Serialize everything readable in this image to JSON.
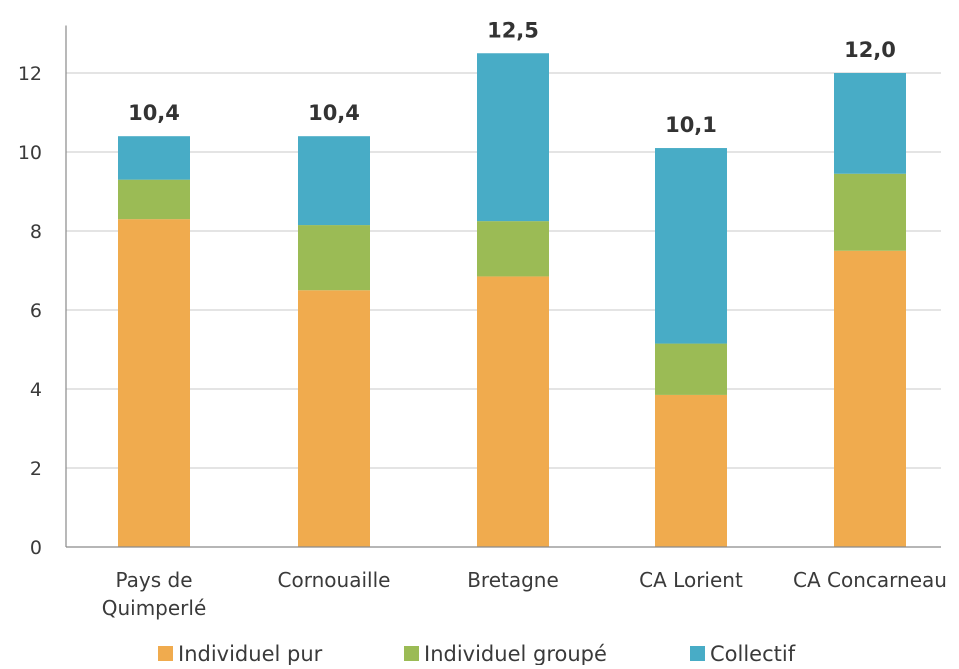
{
  "chart_data": {
    "type": "bar",
    "stacked": true,
    "categories": [
      [
        "Pays de",
        "Quimperlé"
      ],
      [
        "Cornouaille"
      ],
      [
        "Bretagne"
      ],
      [
        "CA Lorient"
      ],
      [
        "CA Concarneau"
      ]
    ],
    "series": [
      {
        "name": "Individuel pur",
        "color": "#f0ab4e",
        "values": [
          8.3,
          6.5,
          6.85,
          3.85,
          7.5
        ]
      },
      {
        "name": "Individuel groupé",
        "color": "#9bbb55",
        "values": [
          1.0,
          1.65,
          1.4,
          1.3,
          1.95
        ]
      },
      {
        "name": "Collectif",
        "color": "#48acc6",
        "values": [
          1.1,
          2.25,
          4.25,
          4.95,
          2.55
        ]
      }
    ],
    "totals": [
      "10,4",
      "10,4",
      "12,5",
      "10,1",
      "12,0"
    ],
    "yticks": [
      "0",
      "2",
      "4",
      "6",
      "8",
      "10",
      "12"
    ],
    "ylim": [
      0,
      13
    ],
    "grid": true,
    "legend_position": "bottom",
    "title": "",
    "xlabel": "",
    "ylabel": ""
  }
}
